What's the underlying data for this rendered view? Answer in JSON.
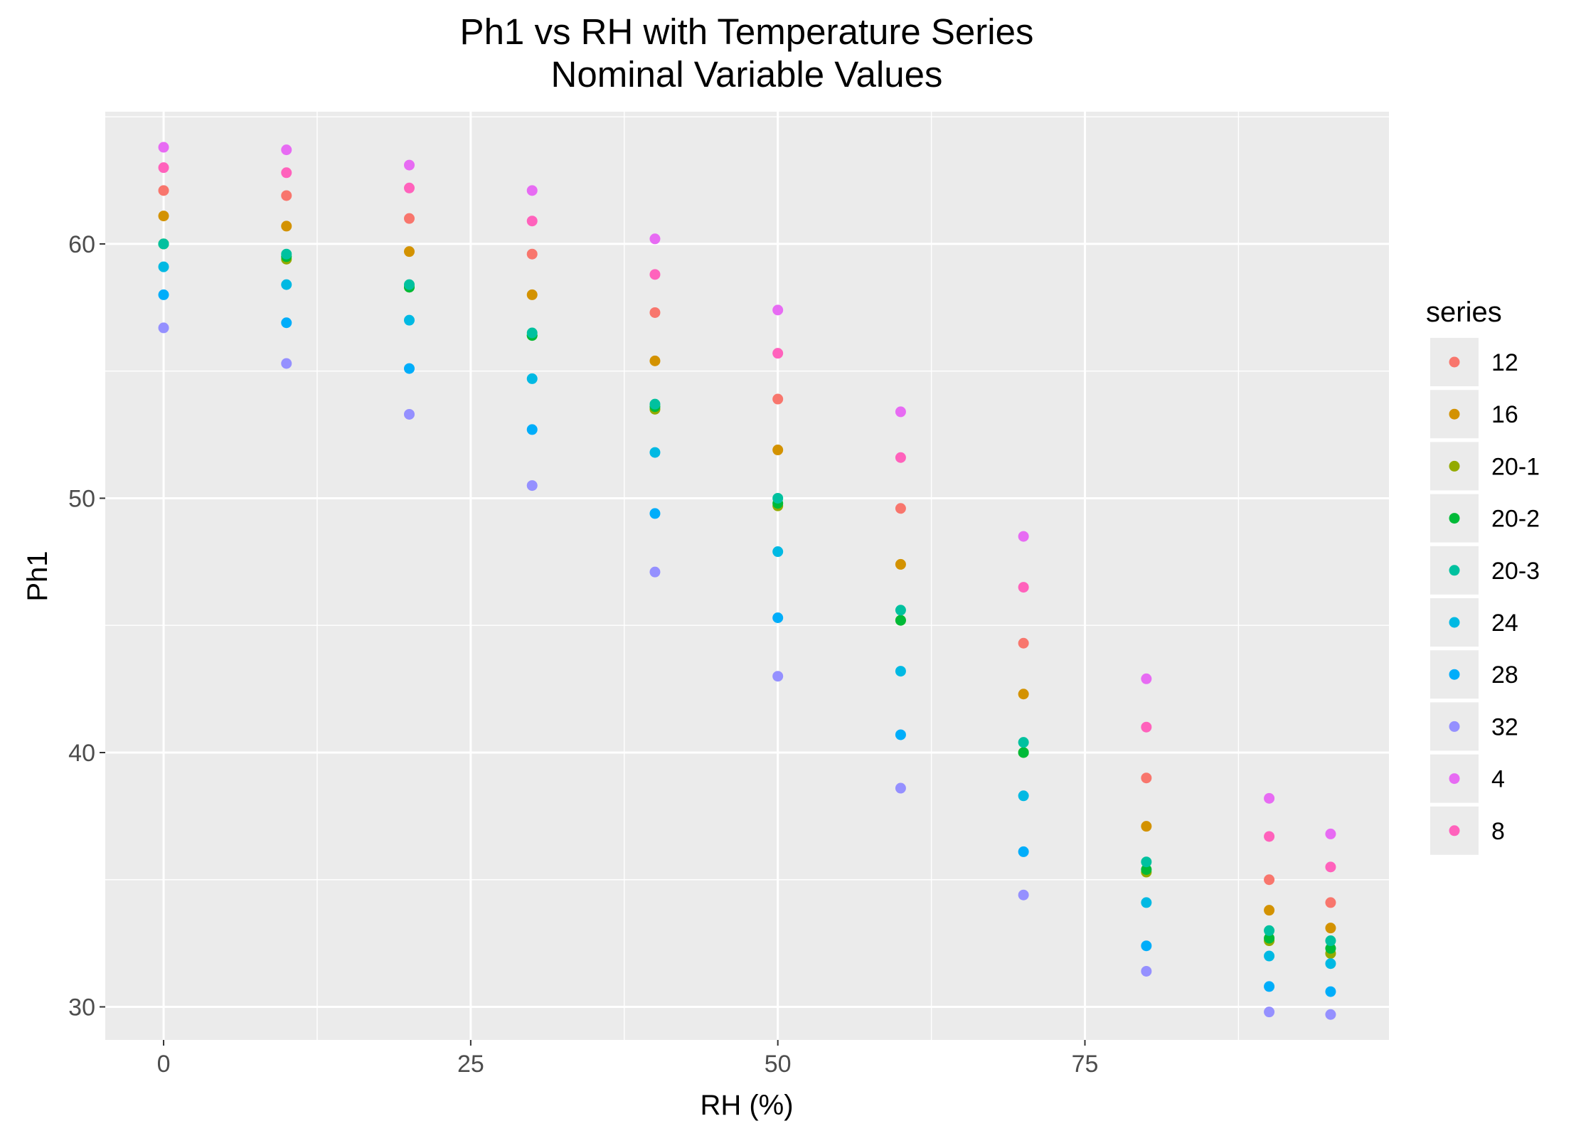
{
  "chart_data": {
    "type": "scatter",
    "title": "Ph1 vs RH with Temperature Series",
    "subtitle": "Nominal Variable Values",
    "xlabel": "RH (%)",
    "ylabel": "Ph1",
    "xlim": [
      -4.75,
      99.75
    ],
    "ylim": [
      28.7,
      65.2
    ],
    "x_ticks": [
      0,
      25,
      50,
      75
    ],
    "y_ticks": [
      30,
      40,
      50,
      60
    ],
    "grid": true,
    "legend_title": "series",
    "legend_position": "right",
    "x": [
      0,
      10,
      20,
      30,
      40,
      50,
      60,
      70,
      80,
      90,
      95
    ],
    "series": [
      {
        "name": "12",
        "color": "#F8766D",
        "values": [
          62.1,
          61.9,
          61.0,
          59.6,
          57.3,
          53.9,
          49.6,
          44.3,
          39.0,
          35.0,
          34.1
        ]
      },
      {
        "name": "16",
        "color": "#D39200",
        "values": [
          61.1,
          60.7,
          59.7,
          58.0,
          55.4,
          51.9,
          47.4,
          42.3,
          37.1,
          33.8,
          33.1
        ]
      },
      {
        "name": "20-1",
        "color": "#93AA00",
        "values": [
          60.0,
          59.4,
          58.3,
          56.4,
          53.5,
          49.7,
          45.2,
          40.0,
          35.3,
          32.6,
          32.1
        ]
      },
      {
        "name": "20-2",
        "color": "#00BA38",
        "values": [
          60.0,
          59.5,
          58.3,
          56.4,
          53.6,
          49.8,
          45.2,
          40.0,
          35.4,
          32.7,
          32.3
        ]
      },
      {
        "name": "20-3",
        "color": "#00C19F",
        "values": [
          60.0,
          59.6,
          58.4,
          56.5,
          53.7,
          50.0,
          45.6,
          40.4,
          35.7,
          33.0,
          32.6
        ]
      },
      {
        "name": "24",
        "color": "#00B9E3",
        "values": [
          59.1,
          58.4,
          57.0,
          54.7,
          51.8,
          47.9,
          43.2,
          38.3,
          34.1,
          32.0,
          31.7
        ]
      },
      {
        "name": "28",
        "color": "#00ADFA",
        "values": [
          58.0,
          56.9,
          55.1,
          52.7,
          49.4,
          45.3,
          40.7,
          36.1,
          32.4,
          30.8,
          30.6
        ]
      },
      {
        "name": "32",
        "color": "#9590FF",
        "values": [
          56.7,
          55.3,
          53.3,
          50.5,
          47.1,
          43.0,
          38.6,
          34.4,
          31.4,
          29.8,
          29.7
        ]
      },
      {
        "name": "4",
        "color": "#E76BF3",
        "values": [
          63.8,
          63.7,
          63.1,
          62.1,
          60.2,
          57.4,
          53.4,
          48.5,
          42.9,
          38.2,
          36.8
        ]
      },
      {
        "name": "8",
        "color": "#FF62BC",
        "values": [
          63.0,
          62.8,
          62.2,
          60.9,
          58.8,
          55.7,
          51.6,
          46.5,
          41.0,
          36.7,
          35.5
        ]
      }
    ]
  }
}
